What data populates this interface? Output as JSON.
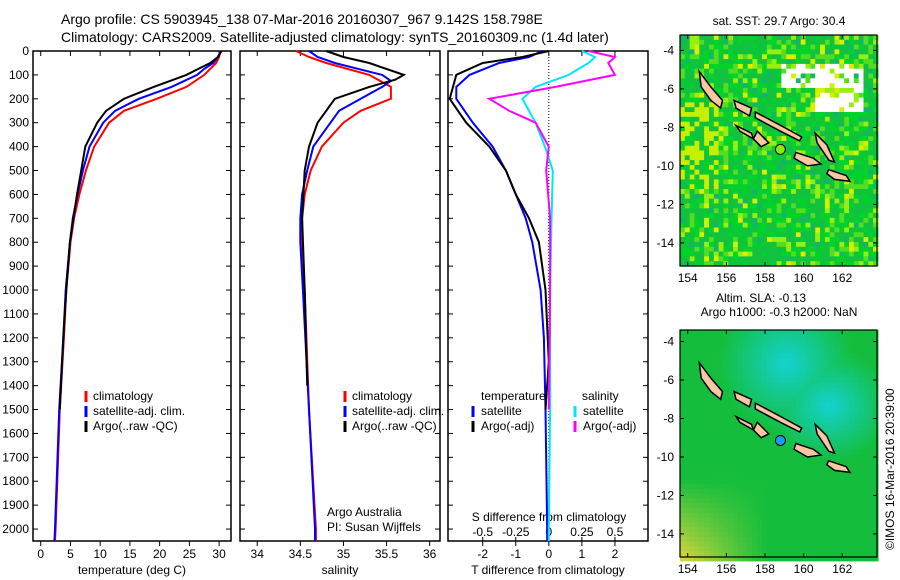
{
  "title_line1": "Argo profile: CS 5903945_138 07-Mar-2016 20160307_967 9.142S 158.798E",
  "title_line2": "Climatology: CARS2009. Satellite-adjusted climatology: synTS_20160309.nc (1.4d later)",
  "colors": {
    "climatology": "#ff0000",
    "satellite": "#0000ff",
    "argo": "#000000",
    "s_satellite": "#00e5ff",
    "s_argo": "#ff00ff"
  },
  "chart_data": [
    {
      "type": "line",
      "name": "temperature",
      "xlabel": "temperature (deg C)",
      "xlim": [
        -1.3,
        32
      ],
      "ylim": [
        2050,
        0
      ],
      "xticks": [
        0,
        5,
        10,
        15,
        20,
        25,
        30
      ],
      "yticks": [
        0,
        100,
        200,
        300,
        400,
        500,
        600,
        700,
        800,
        900,
        1000,
        1100,
        1200,
        1300,
        1400,
        1500,
        1600,
        1700,
        1800,
        1900,
        2000
      ],
      "legend": [
        "climatology",
        "satellite-adj. clim.",
        "Argo(..raw -QC)"
      ],
      "series": [
        {
          "name": "climatology",
          "color": "#ff0000",
          "depth": [
            0,
            25,
            50,
            75,
            100,
            150,
            200,
            250,
            300,
            400,
            500,
            600,
            700,
            800,
            1000,
            1200,
            1500,
            2000,
            2050
          ],
          "values": [
            30.2,
            30,
            29.5,
            28.5,
            27.5,
            24.5,
            19.5,
            14,
            11.5,
            9,
            7.6,
            6.5,
            5.6,
            5,
            4.3,
            3.9,
            3.2,
            2.5,
            2.4
          ]
        },
        {
          "name": "satellite-adj. clim.",
          "color": "#0000ff",
          "depth": [
            0,
            25,
            50,
            75,
            100,
            150,
            200,
            250,
            300,
            400,
            500,
            600,
            700,
            800,
            1000,
            1200,
            1500,
            2000,
            2050
          ],
          "values": [
            30.3,
            29.8,
            29,
            27.5,
            26.3,
            22,
            16.5,
            12.5,
            10.5,
            8.2,
            7.1,
            6.2,
            5.4,
            4.9,
            4.2,
            3.8,
            3.1,
            2.4,
            2.3
          ]
        },
        {
          "name": "Argo(..raw -QC)",
          "color": "#000000",
          "depth": [
            0,
            25,
            50,
            75,
            100,
            150,
            200,
            250,
            300,
            400,
            500,
            600,
            800,
            1000,
            1200,
            1500
          ],
          "values": [
            30.4,
            29.8,
            28.5,
            26.5,
            24.5,
            19,
            14,
            11,
            9.5,
            7.5,
            6.8,
            6.1,
            4.9,
            4.3,
            3.8,
            3.2
          ]
        }
      ]
    },
    {
      "type": "line",
      "name": "salinity",
      "xlabel": "salinity",
      "xlim": [
        33.8,
        36.12
      ],
      "ylim": [
        2050,
        0
      ],
      "xticks": [
        34,
        34.5,
        35,
        35.5,
        36
      ],
      "legend": [
        "climatology",
        "satellite-adj. clim.",
        "Argo(..raw -QC)"
      ],
      "annotation": [
        "Argo Australia",
        "PI: Susan Wijffels"
      ],
      "series": [
        {
          "name": "climatology",
          "color": "#ff0000",
          "depth": [
            0,
            25,
            50,
            100,
            150,
            200,
            250,
            300,
            400,
            500,
            600,
            700,
            800,
            1000,
            1500,
            2000,
            2050
          ],
          "values": [
            34.45,
            34.6,
            34.8,
            35.3,
            35.55,
            35.55,
            35.2,
            35.0,
            34.75,
            34.62,
            34.55,
            34.52,
            34.52,
            34.55,
            34.6,
            34.68,
            34.68
          ]
        },
        {
          "name": "satellite-adj. clim.",
          "color": "#0000ff",
          "depth": [
            0,
            25,
            50,
            100,
            125,
            150,
            200,
            250,
            300,
            400,
            500,
            600,
            700,
            800,
            1000,
            1500,
            2000,
            2050
          ],
          "values": [
            34.6,
            34.7,
            34.9,
            35.45,
            35.55,
            35.45,
            35.2,
            34.95,
            34.85,
            34.65,
            34.58,
            34.52,
            34.5,
            34.5,
            34.53,
            34.6,
            34.67,
            34.67
          ]
        },
        {
          "name": "Argo(..raw -QC)",
          "color": "#000000",
          "depth": [
            0,
            25,
            50,
            100,
            120,
            150,
            200,
            250,
            300,
            400,
            500,
            700,
            1000,
            1400
          ],
          "values": [
            34.8,
            35.0,
            35.3,
            35.7,
            35.6,
            35.3,
            34.9,
            34.8,
            34.7,
            34.6,
            34.55,
            34.52,
            34.55,
            34.58
          ]
        }
      ]
    },
    {
      "type": "line",
      "name": "difference",
      "xlabel": "T difference from climatology",
      "x2label": "S difference from climatology",
      "xlim": [
        -3.05,
        3.0
      ],
      "ylim": [
        2050,
        0
      ],
      "xticks": [
        -2,
        -1,
        0,
        1,
        2
      ],
      "x2ticks": [
        -0.5,
        -0.25,
        0,
        0.25,
        0.5
      ],
      "legend_headers": [
        "temperature",
        "salinity"
      ],
      "legend": [
        "satellite",
        "Argo(-adj)",
        "satellite",
        "Argo(-adj)"
      ],
      "series": [
        {
          "name": "T satellite",
          "axis": "T",
          "color": "#0000ff",
          "depth": [
            0,
            25,
            50,
            100,
            150,
            200,
            300,
            400,
            500,
            600,
            700,
            800,
            1000,
            1200,
            1500,
            2000,
            2050
          ],
          "values": [
            -0.2,
            -0.6,
            -1.5,
            -2.4,
            -2.8,
            -2.8,
            -2.3,
            -1.7,
            -1.3,
            -1.0,
            -0.7,
            -0.5,
            -0.25,
            -0.15,
            -0.1,
            -0.05,
            -0.05
          ]
        },
        {
          "name": "T Argo(-adj)",
          "axis": "T",
          "color": "#000000",
          "depth": [
            0,
            25,
            50,
            100,
            200,
            300,
            400,
            500,
            600,
            700,
            800,
            1000,
            1300,
            1500
          ],
          "values": [
            0,
            -0.8,
            -2.0,
            -2.8,
            -3.0,
            -2.5,
            -1.8,
            -1.3,
            -1.0,
            -0.6,
            -0.3,
            -0.1,
            0,
            -0.1
          ]
        },
        {
          "name": "S satellite",
          "axis": "S",
          "color": "#00e5ff",
          "depth": [
            0,
            25,
            50,
            100,
            150,
            200,
            300,
            400,
            500,
            700,
            1000,
            1500,
            2000,
            2050
          ],
          "values": [
            0.25,
            0.35,
            0.3,
            0.15,
            -0.1,
            -0.2,
            -0.1,
            -0.03,
            0.03,
            0.02,
            0.01,
            0.01,
            0,
            0
          ]
        },
        {
          "name": "S Argo(-adj)",
          "axis": "S",
          "color": "#ff00ff",
          "depth": [
            0,
            25,
            50,
            100,
            150,
            200,
            250,
            300,
            400,
            500,
            700,
            1000,
            1500
          ],
          "values": [
            0.3,
            0.5,
            0.45,
            0.5,
            0.05,
            -0.45,
            -0.3,
            -0.1,
            0,
            -0.02,
            0.01,
            0.01,
            0
          ]
        }
      ]
    },
    {
      "type": "heatmap",
      "name": "sst-map",
      "title": "sat. SST: 29.7 Argo: 30.4",
      "xticks": [
        154,
        156,
        158,
        160,
        162
      ],
      "yticks": [
        -4,
        -6,
        -8,
        -10,
        -12,
        -14
      ],
      "xlim": [
        153.6,
        163.8
      ],
      "ylim": [
        -15.2,
        -3.2
      ],
      "argo_position": {
        "lon": 158.798,
        "lat": -9.142
      }
    },
    {
      "type": "heatmap",
      "name": "sla-map",
      "title": "Altim. SLA: -0.13",
      "subtitle": "Argo h1000: -0.3 h2000: NaN",
      "xticks": [
        154,
        156,
        158,
        160,
        162
      ],
      "yticks": [
        -4,
        -6,
        -8,
        -10,
        -12,
        -14
      ],
      "xlim": [
        153.6,
        163.8
      ],
      "ylim": [
        -15.2,
        -3.4
      ],
      "argo_position": {
        "lon": 158.798,
        "lat": -9.142
      }
    }
  ],
  "credit": "©IMOS 16-Mar-2016 20:39:00"
}
